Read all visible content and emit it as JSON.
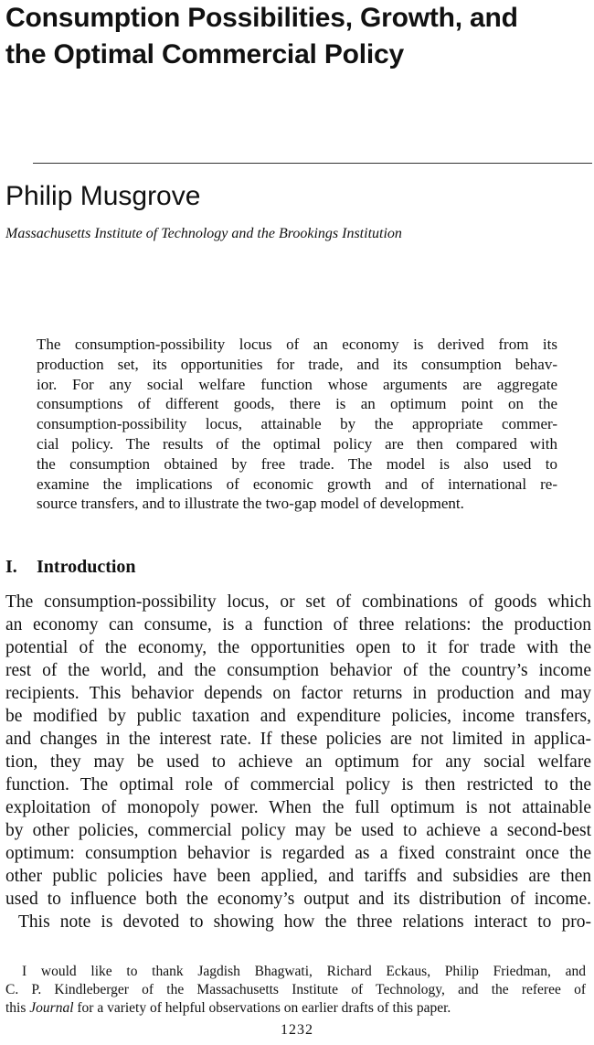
{
  "title_lines": [
    "Consumption Possibilities, Growth, and",
    "the Optimal Commercial Policy"
  ],
  "author": "Philip Musgrove",
  "affiliation": "Massachusetts Institute of Technology and the Brookings Institution",
  "abstract_lines": [
    "The consumption-possibility locus of an economy is derived from its",
    "production set, its opportunities for trade, and its consumption behav-",
    "ior. For any social welfare function whose arguments are aggregate",
    "consumptions of different goods, there is an optimum point on the",
    "consumption-possibility locus, attainable by the appropriate commer-",
    "cial policy. The results of the optimal policy are then compared with",
    "the consumption obtained by free trade. The model is also used to",
    "examine the implications of economic growth and of international re-",
    "source transfers, and to illustrate the two-gap model of development."
  ],
  "section": {
    "number": "I.",
    "title": "Introduction"
  },
  "body_lines": [
    "The consumption-possibility locus, or set of combinations of goods which",
    "an economy can consume, is a function of three relations: the production",
    "potential of the economy, the opportunities open to it for trade with the",
    "rest of the world, and the consumption behavior of the country’s income",
    "recipients. This behavior depends on factor returns in production and may",
    "be modified by public taxation and expenditure policies, income transfers,",
    "and changes in the interest rate. If these policies are not limited in applica-",
    "tion, they may be used to achieve an optimum for any social welfare",
    "function. The optimal role of commercial policy is then restricted to the",
    "exploitation of monopoly power. When the full optimum is not attainable",
    "by other policies, commercial policy may be used to achieve a second-best",
    "optimum: consumption behavior is regarded as a fixed constraint once the",
    "other public policies have been applied, and tariffs and subsidies are then",
    "used to influence both the economy’s output and its distribution of income.",
    "This note is devoted to showing how the three relations interact to pro-"
  ],
  "footnote": {
    "line1": "I would like to thank Jagdish Bhagwati, Richard Eckaus, Philip Friedman, and",
    "line2": "C. P. Kindleberger of the Massachusetts Institute of Technology, and the referee of",
    "line3_before": "this ",
    "line3_italic": "Journal",
    "line3_after": " for a variety of helpful observations on earlier drafts of this paper."
  },
  "page_number": "1232"
}
